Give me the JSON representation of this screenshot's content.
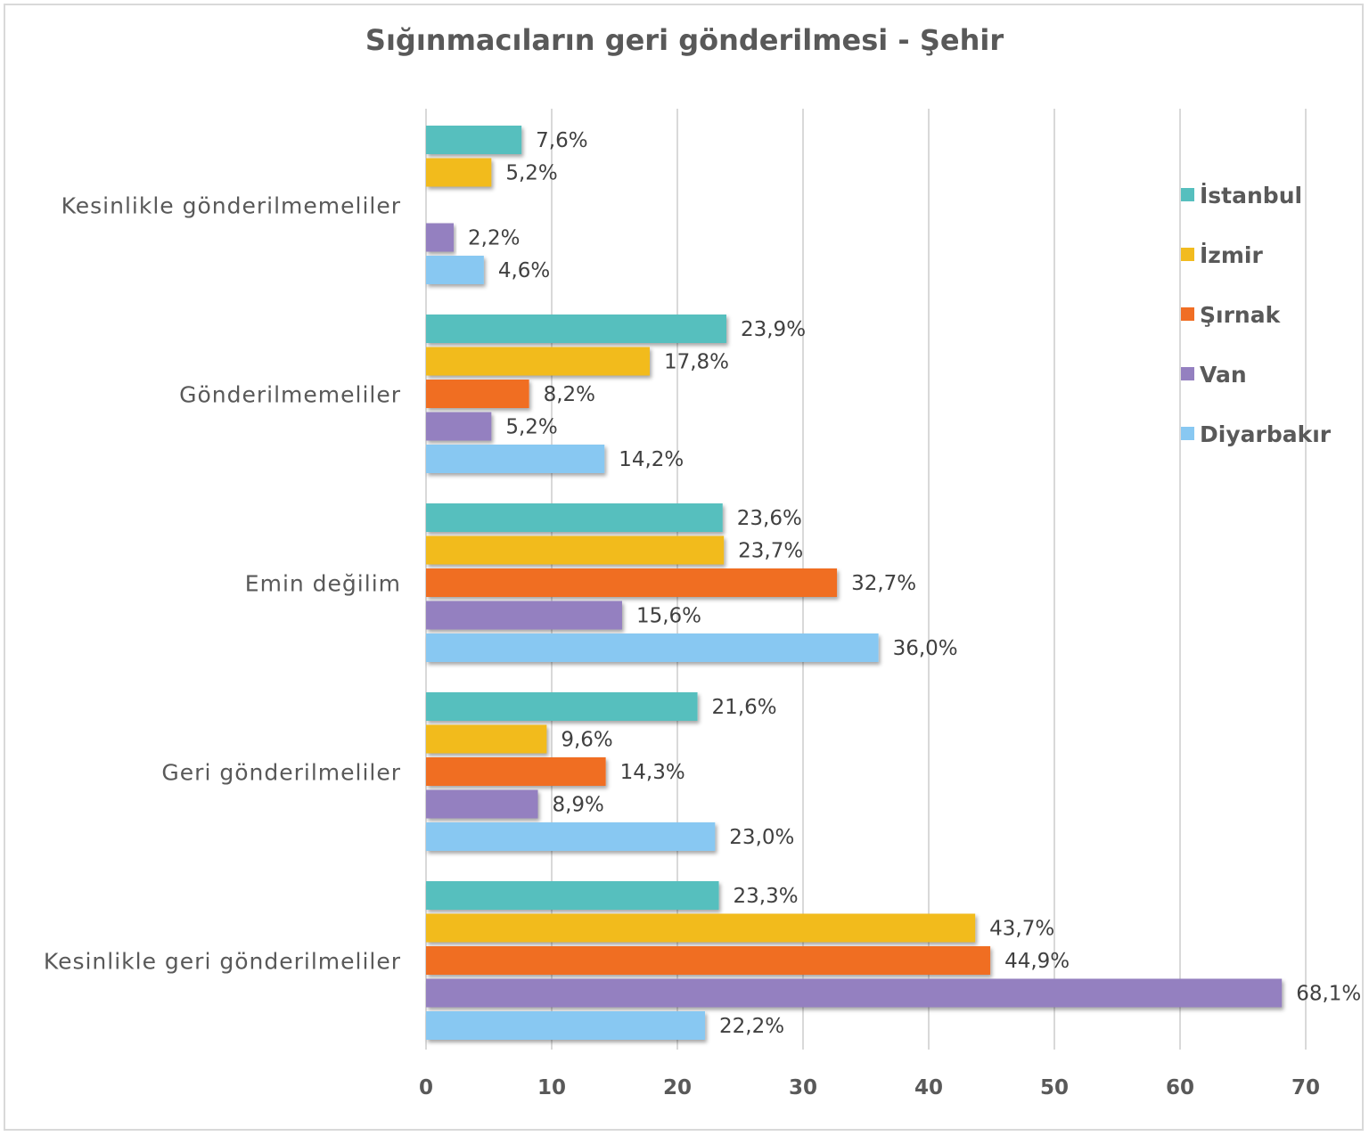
{
  "chart_data": {
    "type": "bar",
    "orientation": "horizontal",
    "title": "Sığınmacıların geri gönderilmesi - Şehir",
    "xlabel": "",
    "ylabel": "",
    "xlim": [
      0,
      70
    ],
    "x_ticks": [
      0,
      10,
      20,
      30,
      40,
      50,
      60,
      70
    ],
    "grid": "vertical",
    "legend_position": "right",
    "categories": [
      "Kesinlikle gönderilmemeliler",
      "Gönderilmemeliler",
      "Emin değilim",
      "Geri gönderilmeliler",
      "Kesinlikle geri gönderilmeliler"
    ],
    "series": [
      {
        "name": "İstanbul",
        "color": "#56BFBE",
        "values": [
          7.6,
          23.9,
          23.6,
          21.6,
          23.3
        ],
        "labels": [
          "7,6%",
          "23,9%",
          "23,6%",
          "21,6%",
          "23,3%"
        ]
      },
      {
        "name": "İzmir",
        "color": "#F2BB1F",
        "values": [
          5.2,
          17.8,
          23.7,
          9.6,
          43.7
        ],
        "labels": [
          "5,2%",
          "17,8%",
          "23,7%",
          "9,6%",
          "43,7%"
        ]
      },
      {
        "name": "Şırnak",
        "color": "#F06E24",
        "values": [
          null,
          8.2,
          32.7,
          14.3,
          44.9
        ],
        "labels": [
          null,
          "8,2%",
          "32,7%",
          "14,3%",
          "44,9%"
        ]
      },
      {
        "name": "Van",
        "color": "#9480C0",
        "values": [
          2.2,
          5.2,
          15.6,
          8.9,
          68.1
        ],
        "labels": [
          "2,2%",
          "5,2%",
          "15,6%",
          "8,9%",
          "68,1%"
        ]
      },
      {
        "name": "Diyarbakır",
        "color": "#88C8F2",
        "values": [
          4.6,
          14.2,
          36.0,
          23.0,
          22.2
        ],
        "labels": [
          "4,6%",
          "14,2%",
          "36,0%",
          "23,0%",
          "22,2%"
        ]
      }
    ]
  }
}
